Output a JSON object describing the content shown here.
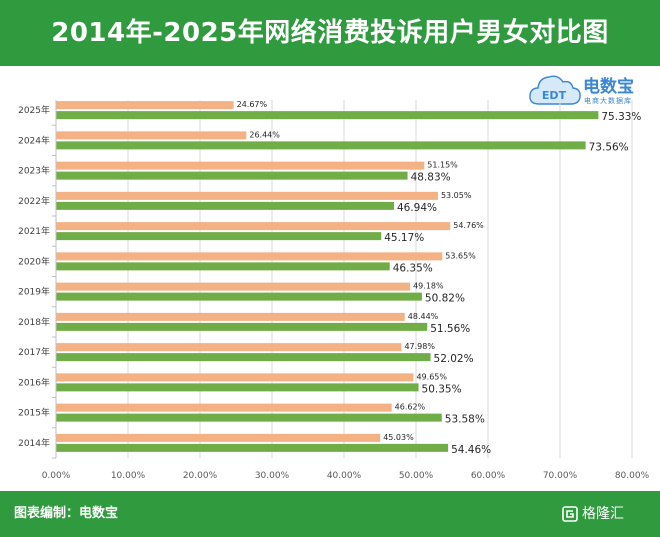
{
  "title": "2014年-2025年网络消费投诉用户男女对比图",
  "logo": {
    "main": "电数宝",
    "sub": "电商大数据库",
    "cloud_text": "EDT"
  },
  "footer": {
    "credit": "图表编制：电数宝",
    "brand": "格隆汇"
  },
  "colors": {
    "header_bg": "#2f9a3e",
    "female": "#f4b183",
    "male": "#70ad47",
    "grid": "#d9d9d9",
    "logo_blue": "#3a86d3"
  },
  "chart_data": {
    "type": "bar",
    "orientation": "horizontal",
    "categories": [
      "2025年",
      "2024年",
      "2023年",
      "2022年",
      "2021年",
      "2020年",
      "2019年",
      "2018年",
      "2017年",
      "2016年",
      "2015年",
      "2014年"
    ],
    "series": [
      {
        "color": "#f4b183",
        "values": [
          24.67,
          26.44,
          51.15,
          53.05,
          54.76,
          53.65,
          49.18,
          48.44,
          47.98,
          49.65,
          46.62,
          45.03
        ],
        "labels": [
          "24.67%",
          "26.44%",
          "51.15%",
          "53.05%",
          "54.76%",
          "53.65%",
          "49.18%",
          "48.44%",
          "47.98%",
          "49.65%",
          "46.62%",
          "45.03%"
        ]
      },
      {
        "color": "#70ad47",
        "values": [
          75.33,
          73.56,
          48.83,
          46.94,
          45.17,
          46.35,
          50.82,
          51.56,
          52.02,
          50.35,
          53.58,
          54.46
        ],
        "labels": [
          "75.33%",
          "73.56%",
          "48.83%",
          "46.94%",
          "45.17%",
          "46.35%",
          "50.82%",
          "51.56%",
          "52.02%",
          "50.35%",
          "53.58%",
          "54.46%"
        ]
      }
    ],
    "xlim": [
      0,
      80
    ],
    "x_ticks": [
      0,
      10,
      20,
      30,
      40,
      50,
      60,
      70,
      80
    ],
    "x_tick_labels": [
      "0.00%",
      "10.00%",
      "20.00%",
      "30.00%",
      "40.00%",
      "50.00%",
      "60.00%",
      "70.00%",
      "80.00%"
    ],
    "grid": "vertical"
  }
}
